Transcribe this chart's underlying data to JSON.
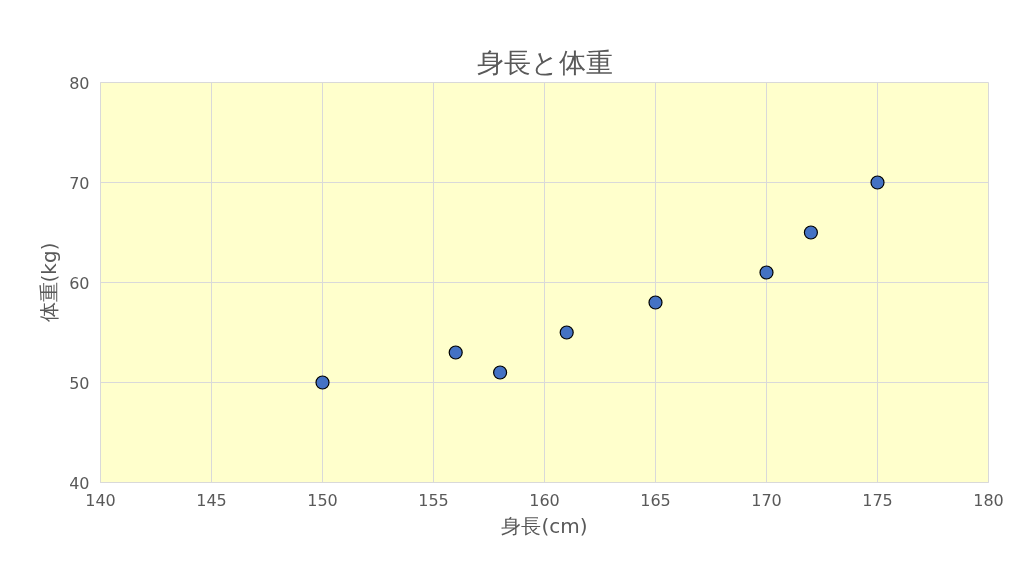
{
  "chart_data": {
    "type": "scatter",
    "title": "身長と体重",
    "xlabel": "身長(cm)",
    "ylabel": "体重(kg)",
    "x": [
      150,
      156,
      158,
      161,
      165,
      170,
      172,
      175
    ],
    "values": [
      50,
      53,
      51,
      55,
      58,
      61,
      65,
      70
    ],
    "color": "#4472c4",
    "xlim": [
      140,
      180
    ],
    "ylim": [
      40,
      80
    ],
    "xticks": [
      140,
      145,
      150,
      155,
      160,
      165,
      170,
      175,
      180
    ],
    "yticks": [
      40,
      50,
      60,
      70,
      80
    ],
    "grid": true,
    "marker": "circle"
  }
}
